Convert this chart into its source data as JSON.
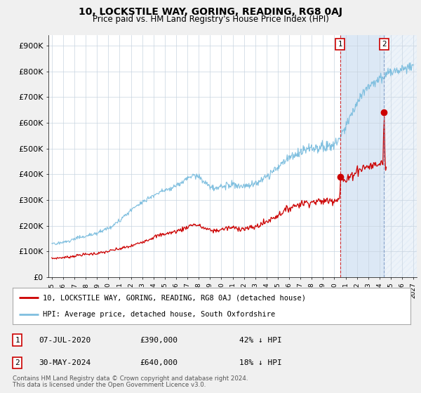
{
  "title": "10, LOCKSTILE WAY, GORING, READING, RG8 0AJ",
  "subtitle": "Price paid vs. HM Land Registry's House Price Index (HPI)",
  "ylim": [
    0,
    940000
  ],
  "yticks": [
    0,
    100000,
    200000,
    300000,
    400000,
    500000,
    600000,
    700000,
    800000,
    900000
  ],
  "ytick_labels": [
    "£0",
    "£100K",
    "£200K",
    "£300K",
    "£400K",
    "£500K",
    "£600K",
    "£700K",
    "£800K",
    "£900K"
  ],
  "background_color": "#f0f0f0",
  "plot_bg_color": "#ffffff",
  "hpi_color": "#7fbfdf",
  "price_color": "#cc0000",
  "vline1_color": "#cc0000",
  "vline2_color": "#7090c0",
  "annotation1": {
    "label": "1",
    "date_str": "07-JUL-2020",
    "price": 390000,
    "hpi_pct": "42% ↓ HPI",
    "x_year": 2020.52
  },
  "annotation2": {
    "label": "2",
    "date_str": "30-MAY-2024",
    "price": 640000,
    "hpi_pct": "18% ↓ HPI",
    "x_year": 2024.41
  },
  "legend_line1": "10, LOCKSTILE WAY, GORING, READING, RG8 0AJ (detached house)",
  "legend_line2": "HPI: Average price, detached house, South Oxfordshire",
  "footer1": "Contains HM Land Registry data © Crown copyright and database right 2024.",
  "footer2": "This data is licensed under the Open Government Licence v3.0.",
  "shade_color": "#dce8f5",
  "hatch_color": "#c0c8d8",
  "xlim_start": 1994.7,
  "xlim_end": 2027.3
}
